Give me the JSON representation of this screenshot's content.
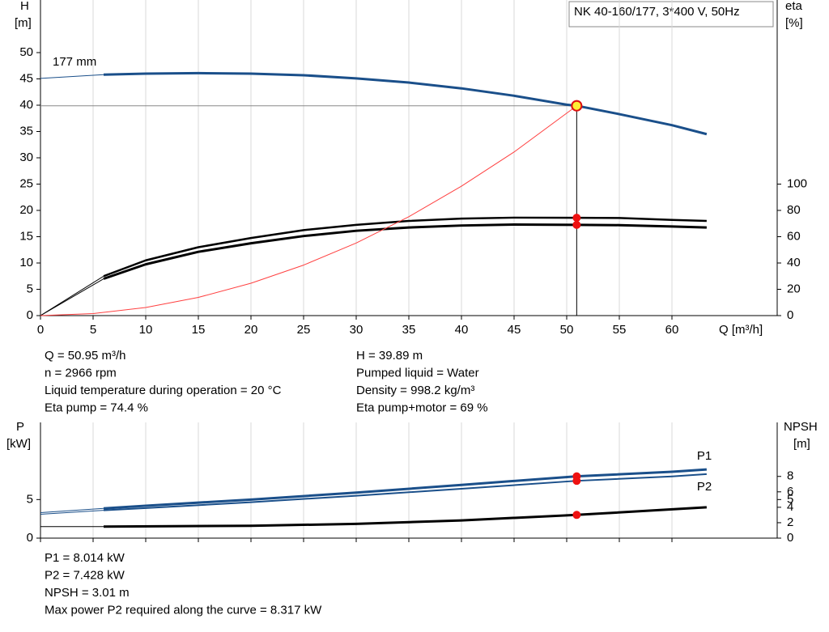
{
  "chart_data": [
    {
      "type": "line",
      "title": "NK 40-160/177, 3*400 V, 50Hz",
      "x_label": "Q [m³/h]",
      "y_label": "H",
      "y_unit": "[m]",
      "y2_label": "eta",
      "y2_unit": "[%]",
      "xlim": [
        0,
        70
      ],
      "xticks": [
        0,
        5,
        10,
        15,
        20,
        25,
        30,
        35,
        40,
        45,
        50,
        55,
        60
      ],
      "ylim": [
        0,
        60
      ],
      "yticks": [
        0,
        5,
        10,
        15,
        20,
        25,
        30,
        35,
        40,
        45,
        50
      ],
      "y2lim": [
        0,
        240
      ],
      "y2ticks": [
        0,
        20,
        40,
        60,
        80,
        100
      ],
      "grid": true,
      "tick_labels": true,
      "operating_point": {
        "x": 50.95,
        "y": 39.89
      },
      "series": [
        {
          "name": "177 mm",
          "label_at": "start",
          "color": "#1a4f8a",
          "width": 3,
          "lead_in": true,
          "axis": "y",
          "x": [
            0,
            6,
            10,
            15,
            20,
            25,
            30,
            35,
            40,
            45,
            50,
            50.95,
            55,
            60,
            63.3
          ],
          "values": [
            45.1,
            45.8,
            46.0,
            46.1,
            46.0,
            45.7,
            45.1,
            44.3,
            43.2,
            41.8,
            40.1,
            39.89,
            38.3,
            36.2,
            34.5
          ]
        },
        {
          "color": "#000000",
          "width": 2.5,
          "lead_in": true,
          "axis": "y2",
          "x": [
            0,
            6,
            10,
            15,
            20,
            25,
            30,
            35,
            40,
            45,
            50.95,
            55,
            60,
            63.3
          ],
          "values": [
            0,
            30,
            42,
            52,
            59,
            65,
            69,
            72,
            73.8,
            74.5,
            74.4,
            74.2,
            72.8,
            72
          ]
        },
        {
          "color": "#000000",
          "width": 3,
          "lead_in": true,
          "axis": "y2",
          "x": [
            0,
            6,
            10,
            15,
            20,
            25,
            30,
            35,
            40,
            45,
            50.95,
            55,
            60,
            63.3
          ],
          "values": [
            0,
            28,
            39,
            48.5,
            55,
            60.5,
            64.5,
            67,
            68.5,
            69.2,
            69,
            68.8,
            67.8,
            67
          ]
        },
        {
          "color": "#ff4040",
          "width": 1,
          "lead_in": false,
          "axis": "y",
          "x": [
            0,
            5,
            10,
            15,
            20,
            25,
            30,
            35,
            40,
            45,
            50.95
          ],
          "values": [
            0,
            0.38,
            1.54,
            3.46,
            6.15,
            9.6,
            13.8,
            18.8,
            24.6,
            31.1,
            39.89
          ]
        }
      ]
    },
    {
      "type": "line",
      "y_label": "P",
      "y_unit": "[kW]",
      "y2_label": "NPSH",
      "y2_unit": "[m]",
      "xlim": [
        0,
        70
      ],
      "xticks": [
        0,
        5,
        10,
        15,
        20,
        25,
        30,
        35,
        40,
        45,
        50,
        55,
        60
      ],
      "ylim": [
        0,
        15
      ],
      "yticks": [
        0,
        5
      ],
      "y2lim": [
        0,
        15
      ],
      "y2ticks": [
        0,
        2,
        4,
        5,
        6,
        8
      ],
      "grid": true,
      "tick_labels": false,
      "operating_x": 50.95,
      "series": [
        {
          "name": "P1",
          "label_at": "end-above",
          "color": "#1a4f8a",
          "width": 3,
          "lead_in": true,
          "axis": "y",
          "x": [
            0,
            6,
            10,
            20,
            30,
            40,
            50.95,
            60,
            63.3
          ],
          "values": [
            3.3,
            3.85,
            4.2,
            5.0,
            5.9,
            6.9,
            8.014,
            8.6,
            8.9
          ]
        },
        {
          "name": "P2",
          "label_at": "end-below",
          "color": "#1a4f8a",
          "width": 2,
          "lead_in": true,
          "axis": "y",
          "x": [
            0,
            6,
            10,
            20,
            30,
            40,
            50.95,
            60,
            63.3
          ],
          "values": [
            3.1,
            3.6,
            3.9,
            4.65,
            5.5,
            6.4,
            7.428,
            8.0,
            8.3
          ]
        },
        {
          "color": "#000000",
          "width": 3,
          "lead_in": true,
          "axis": "y2",
          "x": [
            0,
            6,
            20,
            30,
            40,
            50.95,
            63.3
          ],
          "values": [
            1.5,
            1.5,
            1.6,
            1.85,
            2.3,
            3.01,
            4.0
          ]
        }
      ]
    }
  ],
  "operating_info": {
    "left": [
      "Q = 50.95 m³/h",
      "n = 2966 rpm",
      "Liquid temperature during operation = 20 °C",
      "Eta pump = 74.4 %"
    ],
    "right": [
      "H = 39.89 m",
      "Pumped liquid = Water",
      "Density = 998.2 kg/m³",
      "Eta pump+motor = 69 %"
    ]
  },
  "power_info": [
    "P1 = 8.014 kW",
    "P2 = 7.428 kW",
    "NPSH = 3.01 m",
    "Max power P2 required along the curve = 8.317 kW"
  ]
}
